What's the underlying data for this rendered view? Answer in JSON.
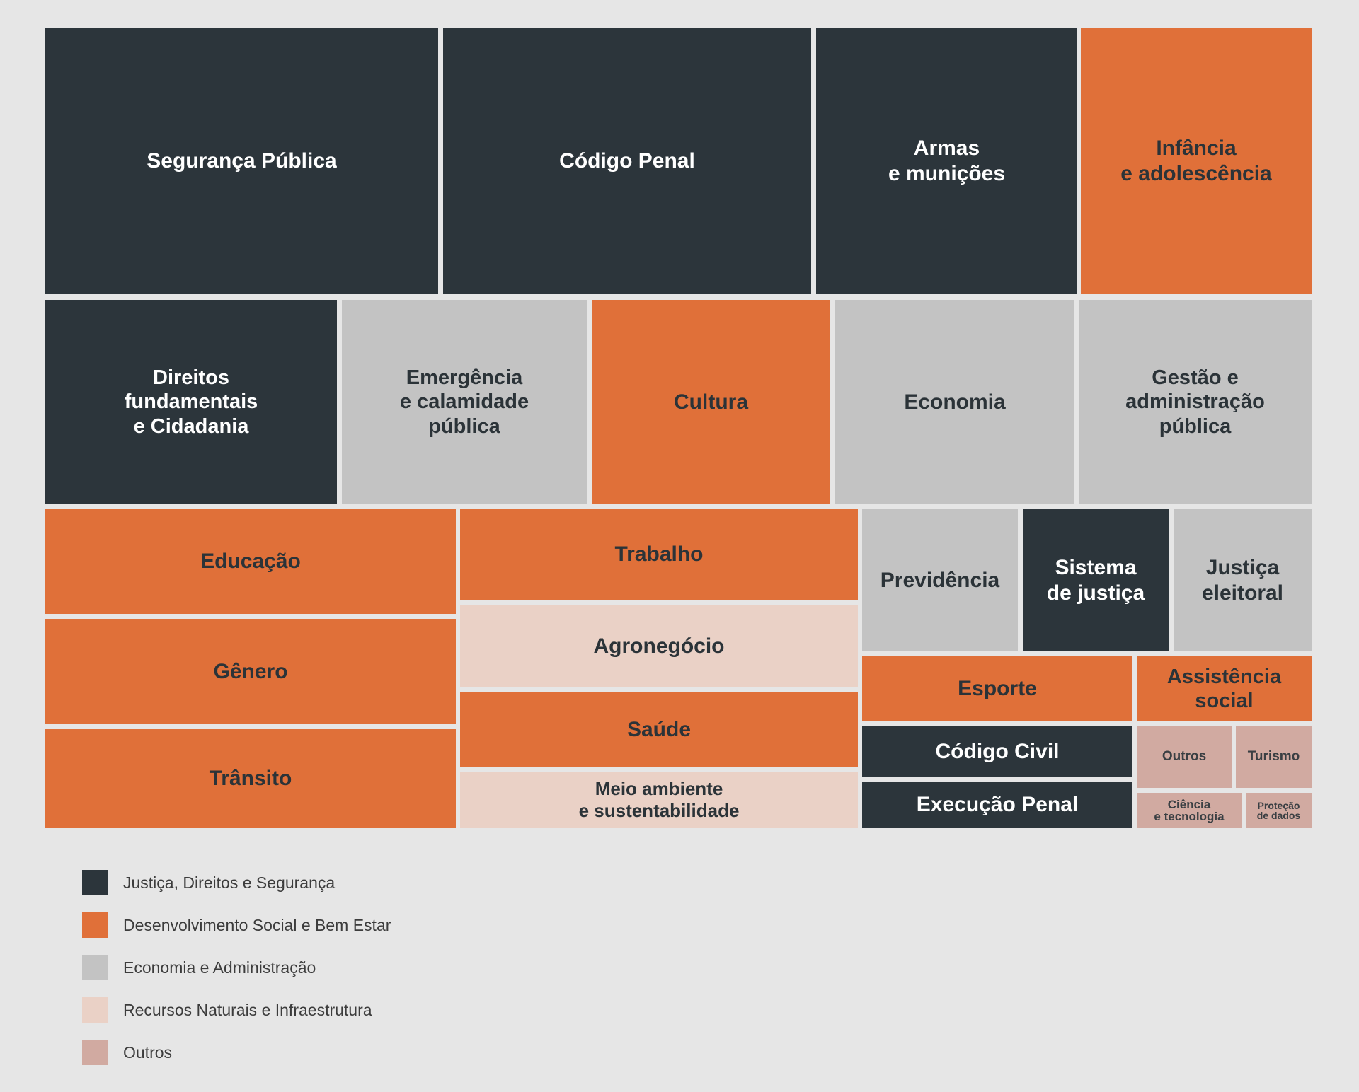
{
  "chart_data": {
    "type": "treemap",
    "categories": [
      {
        "name": "Justiça, Direitos e Segurança",
        "color": "#2c353b"
      },
      {
        "name": "Desenvolvimento Social e Bem Estar",
        "color": "#e07039"
      },
      {
        "name": "Economia e Administração",
        "color": "#c3c3c3"
      },
      {
        "name": "Recursos Naturais e Infraestrutura",
        "color": "#ead1c6"
      },
      {
        "name": "Outros",
        "color": "#d1aaa1"
      }
    ],
    "items": [
      {
        "label": "Segurança Pública",
        "category": 0
      },
      {
        "label": "Código Penal",
        "category": 0
      },
      {
        "label": "Armas\ne munições",
        "category": 0
      },
      {
        "label": "Infância\ne adolescência",
        "category": 1
      },
      {
        "label": "Direitos\nfundamentais\ne Cidadania",
        "category": 0
      },
      {
        "label": "Emergência\ne calamidade\npública",
        "category": 2
      },
      {
        "label": "Cultura",
        "category": 1
      },
      {
        "label": "Economia",
        "category": 2
      },
      {
        "label": "Gestão e\nadministração\npública",
        "category": 2
      },
      {
        "label": "Educação",
        "category": 1
      },
      {
        "label": "Gênero",
        "category": 1
      },
      {
        "label": "Trânsito",
        "category": 1
      },
      {
        "label": "Trabalho",
        "category": 1
      },
      {
        "label": "Agronegócio",
        "category": 3
      },
      {
        "label": "Saúde",
        "category": 1
      },
      {
        "label": "Meio ambiente\ne sustentabilidade",
        "category": 3
      },
      {
        "label": "Previdência",
        "category": 2
      },
      {
        "label": "Sistema\nde justiça",
        "category": 0
      },
      {
        "label": "Justiça\neleitoral",
        "category": 2
      },
      {
        "label": "Esporte",
        "category": 1
      },
      {
        "label": "Assistência\nsocial",
        "category": 1
      },
      {
        "label": "Código Civil",
        "category": 0
      },
      {
        "label": "Execução Penal",
        "category": 0
      },
      {
        "label": "Outros",
        "category": 4
      },
      {
        "label": "Turismo",
        "category": 4
      },
      {
        "label": "Ciência\ne tecnologia",
        "category": 4
      },
      {
        "label": "Proteção\nde dados",
        "category": 4
      }
    ]
  }
}
